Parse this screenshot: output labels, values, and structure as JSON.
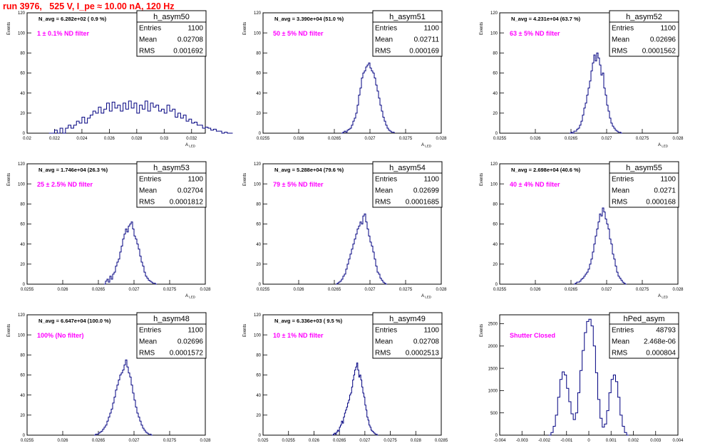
{
  "page_title": "run 3976,   525 V, I_pe ≈ 10.00 nA, 120 Hz",
  "colors": {
    "histogram_line": "#000080",
    "annotation_text": "#ff00ff",
    "frame": "#000000",
    "title_text": "#ff0000"
  },
  "common": {
    "ylabel": "Events",
    "xlabel_main": "A",
    "xlabel_sub": "LED"
  },
  "chart_data": [
    {
      "type": "histogram",
      "name": "h_asym50",
      "stats": [
        {
          "label": "Entries",
          "value": "1100"
        },
        {
          "label": "Mean",
          "value": "0.02708"
        },
        {
          "label": "RMS",
          "value": "0.001692"
        }
      ],
      "n_avg": "N_avg = 6.282e+02 ( 0.9 %)",
      "filter_label": "1 ± 0.1% ND filter",
      "xlim": [
        0.02,
        0.033
      ],
      "ylim": [
        0,
        120
      ],
      "xticks": [
        0.02,
        0.022,
        0.024,
        0.026,
        0.028,
        0.03,
        0.032
      ],
      "xtick_labels": [
        "0.02",
        "0.022",
        "0.024",
        "0.026",
        "0.028",
        "0.03",
        "0.032"
      ],
      "yticks": [
        0,
        20,
        40,
        60,
        80,
        100,
        120
      ],
      "ytick_labels": [
        "0",
        "20",
        "40",
        "60",
        "80",
        "100",
        "120"
      ],
      "bin_width": 0.0002,
      "bins_start": 0.0216,
      "counts": [
        0,
        0,
        3,
        0,
        5,
        0,
        5,
        8,
        5,
        8,
        12,
        10,
        16,
        10,
        15,
        18,
        22,
        20,
        26,
        20,
        24,
        30,
        22,
        31,
        25,
        28,
        22,
        30,
        24,
        32,
        25,
        30,
        20,
        28,
        24,
        32,
        22,
        30,
        26,
        28,
        22,
        24,
        20,
        28,
        22,
        24,
        16,
        20,
        15,
        18,
        12,
        14,
        10,
        11,
        8,
        8,
        5,
        6,
        5,
        3,
        4,
        2,
        2,
        0,
        1,
        0,
        0
      ]
    },
    {
      "type": "histogram",
      "name": "h_asym51",
      "stats": [
        {
          "label": "Entries",
          "value": "1100"
        },
        {
          "label": "Mean",
          "value": "0.02711"
        },
        {
          "label": "RMS",
          "value": "0.000169"
        }
      ],
      "n_avg": "N_avg = 3.390e+04 (51.0 %)",
      "filter_label": "50 ± 5% ND filter",
      "xlim": [
        0.0255,
        0.028
      ],
      "ylim": [
        0,
        120
      ],
      "xticks": [
        0.0255,
        0.026,
        0.0265,
        0.027,
        0.0275,
        0.028
      ],
      "xtick_labels": [
        "0.0255",
        "0.026",
        "0.0265",
        "0.027",
        "0.0275",
        "0.028"
      ],
      "yticks": [
        0,
        20,
        40,
        60,
        80,
        100,
        120
      ],
      "ytick_labels": [
        "0",
        "20",
        "40",
        "60",
        "80",
        "100",
        "120"
      ],
      "bin_width": 2e-05,
      "bins_start": 0.0266,
      "counts": [
        0,
        1,
        2,
        1,
        3,
        4,
        5,
        8,
        12,
        15,
        20,
        28,
        38,
        45,
        55,
        60,
        62,
        66,
        68,
        70,
        65,
        62,
        60,
        55,
        48,
        42,
        35,
        28,
        22,
        16,
        12,
        8,
        5,
        3,
        2,
        1,
        1
      ]
    },
    {
      "type": "histogram",
      "name": "h_asym52",
      "stats": [
        {
          "label": "Entries",
          "value": "1100"
        },
        {
          "label": "Mean",
          "value": "0.02696"
        },
        {
          "label": "RMS",
          "value": "0.0001562"
        }
      ],
      "n_avg": "N_avg = 4.231e+04 (63.7 %)",
      "filter_label": "63 ± 5% ND filter",
      "xlim": [
        0.0255,
        0.028
      ],
      "ylim": [
        0,
        120
      ],
      "xticks": [
        0.0255,
        0.026,
        0.0265,
        0.027,
        0.0275,
        0.028
      ],
      "xtick_labels": [
        "0.0255",
        "0.026",
        "0.0265",
        "0.027",
        "0.0275",
        "0.028"
      ],
      "yticks": [
        0,
        20,
        40,
        60,
        80,
        100,
        120
      ],
      "ytick_labels": [
        "0",
        "20",
        "40",
        "60",
        "80",
        "100",
        "120"
      ],
      "bin_width": 2e-05,
      "bins_start": 0.02648,
      "counts": [
        0,
        1,
        0,
        2,
        2,
        4,
        5,
        8,
        12,
        18,
        25,
        30,
        38,
        45,
        52,
        62,
        70,
        78,
        72,
        80,
        75,
        68,
        58,
        60,
        45,
        38,
        28,
        22,
        15,
        10,
        7,
        5,
        3,
        2,
        1,
        1,
        0
      ]
    },
    {
      "type": "histogram",
      "name": "h_asym53",
      "stats": [
        {
          "label": "Entries",
          "value": "1100"
        },
        {
          "label": "Mean",
          "value": "0.02704"
        },
        {
          "label": "RMS",
          "value": "0.0001812"
        }
      ],
      "n_avg": "N_avg = 1.746e+04 (26.3 %)",
      "filter_label": "25 ± 2.5% ND filter",
      "xlim": [
        0.0255,
        0.028
      ],
      "ylim": [
        0,
        120
      ],
      "xticks": [
        0.0255,
        0.026,
        0.0265,
        0.027,
        0.0275,
        0.028
      ],
      "xtick_labels": [
        "0.0255",
        "0.026",
        "0.0265",
        "0.027",
        "0.0275",
        "0.028"
      ],
      "yticks": [
        0,
        20,
        40,
        60,
        80,
        100,
        120
      ],
      "ytick_labels": [
        "0",
        "20",
        "40",
        "60",
        "80",
        "100",
        "120"
      ],
      "bin_width": 2e-05,
      "bins_start": 0.02658,
      "counts": [
        0,
        3,
        5,
        2,
        8,
        5,
        10,
        12,
        18,
        22,
        25,
        32,
        38,
        45,
        50,
        55,
        52,
        58,
        60,
        62,
        55,
        48,
        45,
        40,
        35,
        28,
        22,
        18,
        12,
        8,
        6,
        4,
        3,
        2,
        1,
        1,
        0
      ]
    },
    {
      "type": "histogram",
      "name": "h_asym54",
      "stats": [
        {
          "label": "Entries",
          "value": "1100"
        },
        {
          "label": "Mean",
          "value": "0.02699"
        },
        {
          "label": "RMS",
          "value": "0.0001685"
        }
      ],
      "n_avg": "N_avg = 5.288e+04 (79.6 %)",
      "filter_label": "79 ± 5% ND filter",
      "xlim": [
        0.0255,
        0.028
      ],
      "ylim": [
        0,
        120
      ],
      "xticks": [
        0.0255,
        0.026,
        0.0265,
        0.027,
        0.0275,
        0.028
      ],
      "xtick_labels": [
        "0.0255",
        "0.026",
        "0.0265",
        "0.027",
        "0.0275",
        "0.028"
      ],
      "yticks": [
        0,
        20,
        40,
        60,
        80,
        100,
        120
      ],
      "ytick_labels": [
        "0",
        "20",
        "40",
        "60",
        "80",
        "100",
        "120"
      ],
      "bin_width": 2e-05,
      "bins_start": 0.02652,
      "counts": [
        0,
        1,
        2,
        3,
        5,
        8,
        10,
        15,
        20,
        25,
        30,
        35,
        40,
        45,
        50,
        55,
        58,
        62,
        60,
        68,
        70,
        62,
        55,
        48,
        42,
        38,
        32,
        25,
        18,
        12,
        10,
        6,
        4,
        2,
        1,
        0
      ]
    },
    {
      "type": "histogram",
      "name": "h_asym55",
      "stats": [
        {
          "label": "Entries",
          "value": "1100"
        },
        {
          "label": "Mean",
          "value": "0.0271"
        },
        {
          "label": "RMS",
          "value": "0.000168"
        }
      ],
      "n_avg": "N_avg = 2.698e+04 (40.6 %)",
      "filter_label": "40 ± 4% ND filter",
      "xlim": [
        0.0255,
        0.028
      ],
      "ylim": [
        0,
        120
      ],
      "xticks": [
        0.0255,
        0.026,
        0.0265,
        0.027,
        0.0275,
        0.028
      ],
      "xtick_labels": [
        "0.0255",
        "0.026",
        "0.0265",
        "0.027",
        "0.0275",
        "0.028"
      ],
      "yticks": [
        0,
        20,
        40,
        60,
        80,
        100,
        120
      ],
      "ytick_labels": [
        "0",
        "20",
        "40",
        "60",
        "80",
        "100",
        "120"
      ],
      "bin_width": 2e-05,
      "bins_start": 0.02654,
      "counts": [
        0,
        1,
        2,
        2,
        3,
        5,
        6,
        8,
        10,
        12,
        15,
        20,
        25,
        32,
        40,
        48,
        55,
        62,
        70,
        68,
        76,
        72,
        65,
        60,
        55,
        45,
        40,
        30,
        25,
        18,
        12,
        8,
        6,
        4,
        2,
        1,
        0
      ]
    },
    {
      "type": "histogram",
      "name": "h_asym48",
      "stats": [
        {
          "label": "Entries",
          "value": "1100"
        },
        {
          "label": "Mean",
          "value": "0.02696"
        },
        {
          "label": "RMS",
          "value": "0.0001572"
        }
      ],
      "n_avg": "N_avg = 6.647e+04 (100.0 %)",
      "filter_label": "100% (No filter)",
      "xlim": [
        0.0255,
        0.028
      ],
      "ylim": [
        0,
        120
      ],
      "xticks": [
        0.0255,
        0.026,
        0.0265,
        0.027,
        0.0275,
        0.028
      ],
      "xtick_labels": [
        "0.0255",
        "0.026",
        "0.0265",
        "0.027",
        "0.0275",
        "0.028"
      ],
      "yticks": [
        0,
        20,
        40,
        60,
        80,
        100,
        120
      ],
      "ytick_labels": [
        "0",
        "20",
        "40",
        "60",
        "80",
        "100",
        "120"
      ],
      "bin_width": 2e-05,
      "bins_start": 0.02644,
      "counts": [
        0,
        1,
        1,
        2,
        3,
        4,
        6,
        8,
        10,
        14,
        18,
        22,
        26,
        32,
        38,
        45,
        50,
        55,
        60,
        62,
        65,
        70,
        75,
        68,
        62,
        58,
        50,
        42,
        35,
        28,
        22,
        18,
        14,
        10,
        7,
        5,
        3,
        2,
        1,
        1,
        0
      ]
    },
    {
      "type": "histogram",
      "name": "h_asym49",
      "stats": [
        {
          "label": "Entries",
          "value": "1100"
        },
        {
          "label": "Mean",
          "value": "0.02708"
        },
        {
          "label": "RMS",
          "value": "0.0002513"
        }
      ],
      "n_avg": "N_avg = 6.336e+03 ( 9.5 %)",
      "filter_label": "10 ± 1% ND filter",
      "xlim": [
        0.025,
        0.0285
      ],
      "ylim": [
        0,
        120
      ],
      "xticks": [
        0.025,
        0.0255,
        0.026,
        0.0265,
        0.027,
        0.0275,
        0.028,
        0.0285
      ],
      "xtick_labels": [
        "0.025",
        "0.0255",
        "0.026",
        "0.0265",
        "0.027",
        "0.0275",
        "0.028",
        "0.0285"
      ],
      "yticks": [
        0,
        20,
        40,
        60,
        80,
        100,
        120
      ],
      "ytick_labels": [
        "0",
        "20",
        "40",
        "60",
        "80",
        "100",
        "120"
      ],
      "bin_width": 2e-05,
      "bins_start": 0.02636,
      "counts": [
        0,
        1,
        2,
        1,
        3,
        5,
        4,
        8,
        10,
        14,
        12,
        18,
        22,
        25,
        28,
        32,
        35,
        40,
        42,
        48,
        55,
        60,
        65,
        68,
        72,
        65,
        58,
        60,
        55,
        48,
        42,
        38,
        30,
        25,
        18,
        15,
        10,
        8,
        5,
        4,
        3,
        2,
        1,
        1,
        0
      ]
    },
    {
      "type": "histogram",
      "name": "hPed_asym",
      "stats": [
        {
          "label": "Entries",
          "value": "48793"
        },
        {
          "label": "Mean",
          "value": "2.468e-06"
        },
        {
          "label": "RMS",
          "value": "0.000804"
        }
      ],
      "n_avg": "",
      "filter_label": "Shutter Closed",
      "xlim": [
        -0.004,
        0.004
      ],
      "ylim": [
        0,
        2700
      ],
      "xticks": [
        -0.004,
        -0.003,
        -0.002,
        -0.001,
        0,
        0.001,
        0.002,
        0.003,
        0.004
      ],
      "xtick_labels": [
        "-0.004",
        "-0.003",
        "-0.002",
        "-0.001",
        "0",
        "0.001",
        "0.002",
        "0.003",
        "0.004"
      ],
      "yticks": [
        0,
        500,
        1000,
        1500,
        2000,
        2500
      ],
      "ytick_labels": [
        "0",
        "500",
        "1000",
        "1500",
        "2000",
        "2500"
      ],
      "bin_width": 0.0001,
      "bins_start": -0.0018,
      "counts": [
        0,
        60,
        200,
        450,
        850,
        1250,
        1420,
        1350,
        1050,
        750,
        480,
        350,
        500,
        950,
        1450,
        1900,
        2300,
        2550,
        2600,
        2450,
        2000,
        1400,
        800,
        380,
        180,
        250,
        550,
        950,
        1250,
        1350,
        1200,
        850,
        450,
        200,
        60,
        0
      ]
    }
  ]
}
